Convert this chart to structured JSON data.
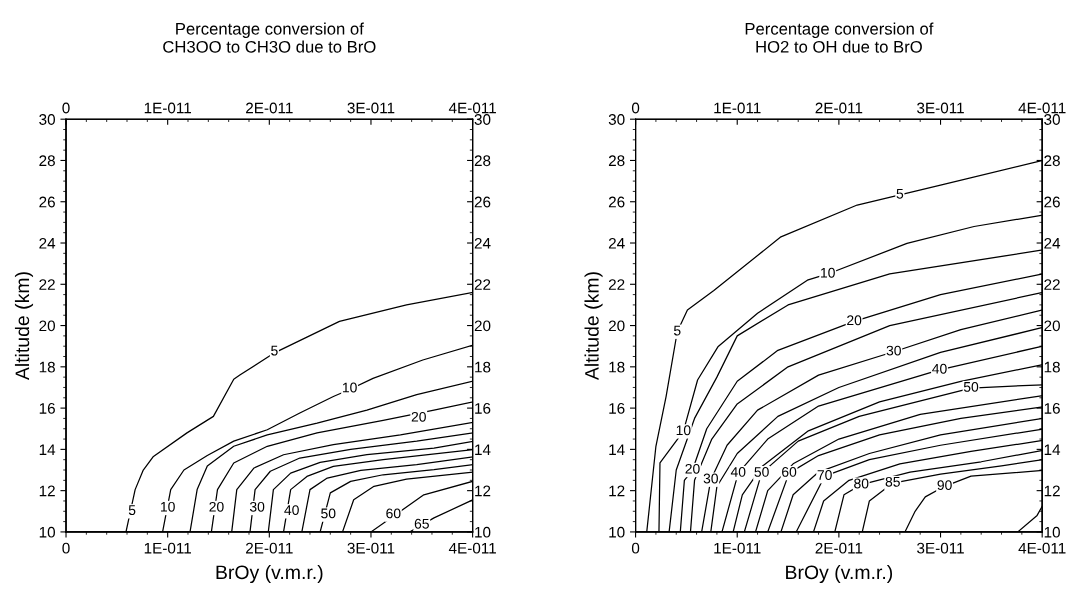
{
  "chart_data": [
    {
      "type": "line",
      "title": "Percentage conversion of\nCH3OO to CH3O due to BrO",
      "xlabel": "BrOy (v.m.r.)",
      "ylabel": "Altitude (km)",
      "xlim": [
        0,
        4e-11
      ],
      "xticks": [
        0,
        {
          "value": 1e-11,
          "label": "1E-011"
        },
        {
          "value": 2e-11,
          "label": "2E-011"
        },
        {
          "value": 3e-11,
          "label": "3E-011"
        },
        {
          "value": 4e-11,
          "label": "4E-011"
        }
      ],
      "x2lim": [
        0,
        4e-11
      ],
      "x2ticks": [
        0,
        {
          "value": 1e-11,
          "label": "1E-011"
        },
        {
          "value": 2e-11,
          "label": "2E-011"
        },
        {
          "value": 3e-11,
          "label": "3E-011"
        },
        {
          "value": 4e-11,
          "label": "4E-011"
        }
      ],
      "ylim": [
        10,
        30
      ],
      "yticks": [
        10,
        12,
        14,
        16,
        18,
        20,
        22,
        24,
        26,
        28,
        30
      ],
      "y2lim": [
        10,
        30
      ],
      "y2ticks": [
        10,
        12,
        14,
        16,
        18,
        20,
        22,
        24,
        26,
        28,
        30
      ],
      "series": [
        {
          "color": "#000000",
          "x": [
            5.9e-12,
            6.8e-12,
            7.6e-12,
            8.6e-12,
            1.19e-11,
            1.45e-11,
            1.65e-11,
            1.71e-11,
            2.04e-11,
            2.69e-11,
            3.35e-11,
            4e-11
          ],
          "values": [
            10,
            12.05,
            13.0,
            13.66,
            14.8,
            15.6,
            17.4,
            17.6,
            18.65,
            20.2,
            21.0,
            21.6
          ]
        },
        {
          "color": "#000000",
          "x": [
            9.5e-12,
            1.03e-11,
            1.16e-11,
            1.39e-11,
            1.65e-11,
            1.98e-11,
            2.3e-11,
            2.63e-11,
            2.79e-11,
            3.02e-11,
            3.51e-11,
            4e-11
          ],
          "values": [
            10,
            12.05,
            13.0,
            13.7,
            14.4,
            14.95,
            15.76,
            16.56,
            16.9,
            17.44,
            18.33,
            19.05
          ]
        },
        {
          "color": "#000000",
          "x": [
            1.22e-11,
            1.29e-11,
            1.39e-11,
            1.65e-11,
            1.98e-11,
            2.47e-11,
            2.96e-11,
            3.45e-11,
            4e-11
          ],
          "values": [
            10,
            12.05,
            13.2,
            14.15,
            14.7,
            15.27,
            15.9,
            16.65,
            17.3
          ]
        },
        {
          "color": "#000000",
          "x": [
            1.43e-11,
            1.49e-11,
            1.65e-11,
            1.98e-11,
            2.47e-11,
            3.12e-11,
            3.62e-11,
            4e-11
          ],
          "values": [
            10,
            12.05,
            13.34,
            14.15,
            14.8,
            15.4,
            15.9,
            16.3
          ]
        },
        {
          "color": "#000000",
          "x": [
            1.63e-11,
            1.68e-11,
            1.85e-11,
            2.14e-11,
            2.63e-11,
            3.29e-11,
            4e-11
          ],
          "values": [
            10,
            12.05,
            13.1,
            13.74,
            14.23,
            14.7,
            15.3
          ]
        },
        {
          "color": "#000000",
          "x": [
            1.81e-11,
            1.86e-11,
            2.01e-11,
            2.3e-11,
            2.8e-11,
            3.45e-11,
            4e-11
          ],
          "values": [
            10,
            12.05,
            12.94,
            13.58,
            14.0,
            14.4,
            14.8
          ]
        },
        {
          "color": "#000000",
          "x": [
            1.99e-11,
            2.04e-11,
            2.21e-11,
            2.5e-11,
            2.96e-11,
            3.62e-11,
            4e-11
          ],
          "values": [
            10,
            12.05,
            12.85,
            13.37,
            13.74,
            14.06,
            14.39
          ]
        },
        {
          "color": "#000000",
          "x": [
            2.14e-11,
            2.21e-11,
            2.37e-11,
            2.63e-11,
            3.12e-11,
            4e-11
          ],
          "values": [
            10,
            12.05,
            12.69,
            13.18,
            13.5,
            13.98
          ]
        },
        {
          "color": "#000000",
          "x": [
            2.32e-11,
            2.4e-11,
            2.57e-11,
            2.9e-11,
            3.45e-11,
            4e-11
          ],
          "values": [
            10,
            12.05,
            12.61,
            12.98,
            13.26,
            13.63
          ]
        },
        {
          "color": "#000000",
          "x": [
            2.5e-11,
            2.6e-11,
            2.8e-11,
            3.12e-11,
            3.62e-11,
            4e-11
          ],
          "values": [
            10,
            11.89,
            12.45,
            12.77,
            13.02,
            13.26
          ]
        },
        {
          "color": "#000000",
          "x": [
            2.72e-11,
            2.83e-11,
            3.03e-11,
            3.35e-11,
            4e-11
          ],
          "values": [
            10,
            11.56,
            12.21,
            12.56,
            12.9
          ]
        },
        {
          "color": "#000000",
          "x": [
            3e-11,
            3.29e-11,
            3.52e-11,
            4e-11
          ],
          "values": [
            10,
            11.0,
            11.8,
            12.45
          ]
        },
        {
          "color": "#000000",
          "x": [
            3.38e-11,
            3.62e-11,
            4e-11
          ],
          "values": [
            10,
            10.68,
            11.55
          ]
        }
      ],
      "annotations": [
        {
          "text": "5",
          "x": 6.5e-12,
          "y": 11.0
        },
        {
          "text": "10",
          "x": 1e-11,
          "y": 11.16
        },
        {
          "text": "20",
          "x": 1.48e-11,
          "y": 11.16
        },
        {
          "text": "30",
          "x": 1.88e-11,
          "y": 11.16
        },
        {
          "text": "40",
          "x": 2.22e-11,
          "y": 11.0
        },
        {
          "text": "50",
          "x": 2.58e-11,
          "y": 10.84
        },
        {
          "text": "60",
          "x": 3.22e-11,
          "y": 10.84
        },
        {
          "text": "65",
          "x": 3.5e-11,
          "y": 10.34
        },
        {
          "text": "5",
          "x": 2.05e-11,
          "y": 18.73
        },
        {
          "text": "10",
          "x": 2.79e-11,
          "y": 16.94
        },
        {
          "text": "20",
          "x": 3.47e-11,
          "y": 15.52
        }
      ]
    },
    {
      "type": "line",
      "title": "Percentage conversion of\nHO2 to OH due to BrO",
      "xlabel": "BrOy (v.m.r.)",
      "ylabel": "Altitude (km)",
      "xlim": [
        0,
        4e-11
      ],
      "xticks": [
        0,
        {
          "value": 1e-11,
          "label": "1E-011"
        },
        {
          "value": 2e-11,
          "label": "2E-011"
        },
        {
          "value": 3e-11,
          "label": "3E-011"
        },
        {
          "value": 4e-11,
          "label": "4E-011"
        }
      ],
      "x2lim": [
        0,
        4e-11
      ],
      "x2ticks": [
        0,
        {
          "value": 1e-11,
          "label": "1E-011"
        },
        {
          "value": 2e-11,
          "label": "2E-011"
        },
        {
          "value": 3e-11,
          "label": "3E-011"
        },
        {
          "value": 4e-11,
          "label": "4E-011"
        }
      ],
      "ylim": [
        10,
        30
      ],
      "yticks": [
        10,
        12,
        14,
        16,
        18,
        20,
        22,
        24,
        26,
        28,
        30
      ],
      "y2lim": [
        10,
        30
      ],
      "y2ticks": [
        10,
        12,
        14,
        16,
        18,
        20,
        22,
        24,
        26,
        28,
        30
      ],
      "series": [
        {
          "color": "#000000",
          "x": [
            1.1e-12,
            2e-12,
            3e-12,
            4.1e-12,
            5.1e-12,
            7.7e-12,
            1.43e-11,
            2.18e-11,
            3e-11,
            4e-11
          ],
          "values": [
            10,
            14.15,
            16.56,
            19.7,
            20.75,
            21.7,
            24.3,
            25.84,
            26.8,
            28.0
          ]
        },
        {
          "color": "#000000",
          "x": [
            2.3e-12,
            2.4e-12,
            4.7e-12,
            6.1e-12,
            8.1e-12,
            1.2e-11,
            1.69e-11,
            1.89e-11,
            2.67e-11,
            3.33e-11,
            4e-11
          ],
          "values": [
            10,
            13.34,
            14.87,
            17.36,
            18.97,
            20.6,
            22.2,
            22.5,
            23.98,
            24.8,
            25.35
          ]
        },
        {
          "color": "#000000",
          "x": [
            3.3e-12,
            4e-12,
            5.8e-12,
            8e-12,
            1e-11,
            1.5e-11,
            2.5e-11,
            4e-11
          ],
          "values": [
            10,
            13,
            15.5,
            17.5,
            19.5,
            21.0,
            22.5,
            23.66
          ]
        },
        {
          "color": "#000000",
          "x": [
            4.4e-12,
            4.8e-12,
            5.6e-12,
            7e-12,
            1e-11,
            1.4e-11,
            2.15e-11,
            3e-11,
            4e-11
          ],
          "values": [
            10,
            12.5,
            13.0,
            15,
            17.3,
            18.8,
            20.2,
            21.5,
            22.5
          ]
        },
        {
          "color": "#000000",
          "x": [
            5.4e-12,
            5.8e-12,
            7.5e-12,
            1e-11,
            1.5e-11,
            2.5e-11,
            4e-11
          ],
          "values": [
            10,
            12.5,
            14.5,
            16.2,
            18.0,
            20.0,
            21.6
          ]
        },
        {
          "color": "#000000",
          "x": [
            6.5e-12,
            7.4e-12,
            9e-12,
            1.2e-11,
            1.8e-11,
            2.54e-11,
            3.2e-11,
            4e-11
          ],
          "values": [
            10,
            12.53,
            14.2,
            15.9,
            17.6,
            18.73,
            19.8,
            20.75
          ]
        },
        {
          "color": "#000000",
          "x": [
            7.4e-12,
            8e-12,
            1e-11,
            1.4e-11,
            2e-11,
            3e-11,
            4e-11
          ],
          "values": [
            10,
            12.2,
            13.8,
            15.6,
            17.0,
            18.7,
            19.9
          ]
        },
        {
          "color": "#000000",
          "x": [
            8.5e-12,
            1.01e-11,
            1.3e-11,
            1.8e-11,
            2.99e-11,
            4e-11
          ],
          "values": [
            10,
            12.85,
            14.5,
            16.1,
            17.85,
            19.0
          ]
        },
        {
          "color": "#000000",
          "x": [
            9.6e-12,
            1.05e-11,
            1.25e-11,
            1.7e-11,
            2.4e-11,
            3.2e-11,
            4e-11
          ],
          "values": [
            10,
            11.8,
            13.2,
            14.9,
            16.3,
            17.3,
            18.1
          ]
        },
        {
          "color": "#000000",
          "x": [
            1.07e-11,
            1.24e-11,
            1.6e-11,
            2.2e-11,
            3.3e-11,
            4e-11
          ],
          "values": [
            10,
            12.85,
            14.4,
            15.6,
            16.97,
            17.13
          ]
        },
        {
          "color": "#000000",
          "x": [
            1.18e-11,
            1.3e-11,
            1.55e-11,
            2e-11,
            2.8e-11,
            4e-11
          ],
          "values": [
            10,
            12.0,
            13.3,
            14.5,
            15.7,
            16.6
          ]
        },
        {
          "color": "#000000",
          "x": [
            1.3e-11,
            1.51e-11,
            1.8e-11,
            2.4e-11,
            3.2e-11,
            4e-11
          ],
          "values": [
            10,
            12.85,
            13.7,
            14.7,
            15.5,
            16.05
          ]
        },
        {
          "color": "#000000",
          "x": [
            1.43e-11,
            1.55e-11,
            1.8e-11,
            2.3e-11,
            3e-11,
            4e-11
          ],
          "values": [
            10,
            11.8,
            12.9,
            13.8,
            14.7,
            15.5
          ]
        },
        {
          "color": "#000000",
          "x": [
            1.58e-11,
            1.86e-11,
            2.3e-11,
            3e-11,
            4e-11
          ],
          "values": [
            10,
            12.7,
            13.5,
            14.2,
            14.98
          ]
        },
        {
          "color": "#000000",
          "x": [
            1.75e-11,
            1.85e-11,
            2.1e-11,
            2.6e-11,
            3.3e-11,
            4e-11
          ],
          "values": [
            10,
            11.5,
            12.5,
            13.3,
            13.9,
            14.43
          ]
        },
        {
          "color": "#000000",
          "x": [
            1.96e-11,
            2.05e-11,
            2.22e-11,
            2.7e-11,
            3.4e-11,
            4e-11
          ],
          "values": [
            10,
            11.8,
            12.29,
            12.9,
            13.4,
            13.95
          ]
        },
        {
          "color": "#000000",
          "x": [
            2.23e-11,
            2.3e-11,
            2.53e-11,
            3e-11,
            3.6e-11,
            4e-11
          ],
          "values": [
            10,
            11.5,
            12.37,
            12.8,
            13.2,
            13.5
          ]
        },
        {
          "color": "#000000",
          "x": [
            2.65e-11,
            2.75e-11,
            2.85e-11,
            3.04e-11,
            3.3e-11,
            4e-11
          ],
          "values": [
            10,
            11.0,
            11.7,
            12.21,
            12.7,
            12.98
          ]
        },
        {
          "color": "#000000",
          "x": [
            3.76e-11,
            3.95e-11,
            4e-11
          ],
          "values": [
            10,
            10.8,
            11.24
          ]
        }
      ],
      "annotations": [
        {
          "text": "5",
          "x": 2.6e-11,
          "y": 26.33
        },
        {
          "text": "10",
          "x": 1.89e-11,
          "y": 22.5
        },
        {
          "text": "20",
          "x": 2.15e-11,
          "y": 20.2
        },
        {
          "text": "30",
          "x": 2.54e-11,
          "y": 18.73
        },
        {
          "text": "40",
          "x": 2.99e-11,
          "y": 17.85
        },
        {
          "text": "50",
          "x": 3.3e-11,
          "y": 16.97
        },
        {
          "text": "5",
          "x": 4.1e-12,
          "y": 19.7
        },
        {
          "text": "10",
          "x": 4.7e-12,
          "y": 14.87
        },
        {
          "text": "20",
          "x": 5.6e-12,
          "y": 13.0
        },
        {
          "text": "30",
          "x": 7.4e-12,
          "y": 12.53
        },
        {
          "text": "40",
          "x": 1.01e-11,
          "y": 12.85
        },
        {
          "text": "50",
          "x": 1.24e-11,
          "y": 12.85
        },
        {
          "text": "60",
          "x": 1.51e-11,
          "y": 12.85
        },
        {
          "text": "70",
          "x": 1.86e-11,
          "y": 12.7
        },
        {
          "text": "80",
          "x": 2.22e-11,
          "y": 12.29
        },
        {
          "text": "85",
          "x": 2.53e-11,
          "y": 12.37
        },
        {
          "text": "90",
          "x": 3.04e-11,
          "y": 12.21
        }
      ]
    }
  ]
}
